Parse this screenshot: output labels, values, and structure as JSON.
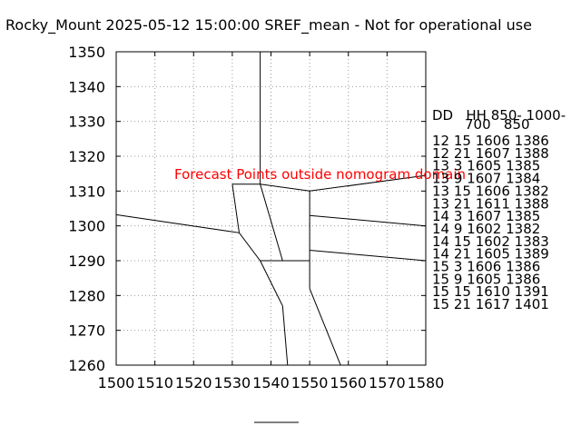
{
  "chart_data": {
    "type": "line",
    "title": "Rocky_Mount 2025-05-12 15:00:00 SREF_mean - Not for operational use",
    "xlabel": "",
    "ylabel": "",
    "xlim": [
      1500,
      1580
    ],
    "ylim": [
      1260,
      1350
    ],
    "x_ticks": [
      1500,
      1510,
      1520,
      1530,
      1540,
      1550,
      1560,
      1570,
      1580
    ],
    "y_ticks": [
      1260,
      1270,
      1280,
      1290,
      1300,
      1310,
      1320,
      1330,
      1340,
      1350
    ],
    "grid": true,
    "annotation": {
      "text": "Forecast Points outside nomogram domain",
      "color": "#ff0000"
    },
    "legend": {
      "header_line1": "DD   HH 850- 1000-",
      "header_line2": "700   850",
      "rows": [
        "12 15 1606 1386",
        "12 21 1607 1388",
        "13  3 1605 1385",
        "13  9 1607 1384",
        "13 15 1606 1382",
        "13 21 1611 1388",
        "14  3 1607 1385",
        "14  9 1602 1382",
        "14 15 1602 1383",
        "14 21 1605 1389",
        "15  3 1606 1386",
        "15  9 1605 1386",
        "15 15 1610 1391",
        "15 21 1617 1401"
      ]
    },
    "series": [
      {
        "x": [
          1537.2,
          1537.2
        ],
        "y": [
          1350,
          1312
        ]
      },
      {
        "x": [
          1530.0,
          1537.2,
          1550.0,
          1580.0
        ],
        "y": [
          1312,
          1312,
          1310,
          1314.5
        ]
      },
      {
        "x": [
          1530.0,
          1531.8
        ],
        "y": [
          1312,
          1298
        ]
      },
      {
        "x": [
          1500.0,
          1531.8,
          1537.2,
          1550.0
        ],
        "y": [
          1303.2,
          1298,
          1290,
          1290
        ]
      },
      {
        "x": [
          1537.2,
          1543.0
        ],
        "y": [
          1312,
          1290
        ]
      },
      {
        "x": [
          1550.0,
          1550.0
        ],
        "y": [
          1310,
          1282
        ]
      },
      {
        "x": [
          1550.0,
          1580.0
        ],
        "y": [
          1303,
          1300
        ]
      },
      {
        "x": [
          1550.0,
          1580.0
        ],
        "y": [
          1293,
          1290
        ]
      },
      {
        "x": [
          1537.2,
          1543.0,
          1544.3
        ],
        "y": [
          1290,
          1277,
          1260
        ]
      },
      {
        "x": [
          1550.0,
          1558.0
        ],
        "y": [
          1282,
          1260
        ]
      }
    ]
  }
}
